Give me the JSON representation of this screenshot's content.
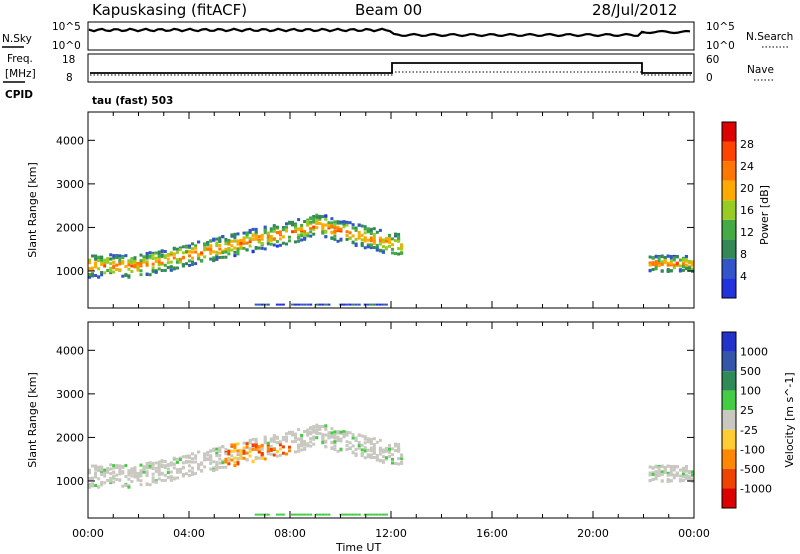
{
  "header": {
    "station": "Kapuskasing (fitACF)",
    "beam": "Beam 00",
    "date": "28/Jul/2012"
  },
  "noise_panel": {
    "left_label": "N.Sky",
    "left_top": "10^5",
    "left_bottom": "10^0",
    "right_label": "N.Search",
    "right_top": "10^5",
    "right_bottom": "10^0"
  },
  "freq_panel": {
    "left_label_1": "Freq.",
    "left_label_2": "[MHz]",
    "left_top": "18",
    "left_bottom": "8",
    "right_label": "Nave",
    "right_top": "60",
    "right_bottom": "0",
    "cpid_label": "CPID",
    "cpid_value": "tau (fast) 503"
  },
  "colors": {
    "power": [
      "#2233dd",
      "#3355cc",
      "#338855",
      "#44aa44",
      "#99cc22",
      "#ffaa00",
      "#ff7700",
      "#ff4400",
      "#dd0000"
    ],
    "velocity": [
      "#2233cc",
      "#3355aa",
      "#2e8b57",
      "#44cc44",
      "#c8c8c0",
      "#ffcc33",
      "#ff8800",
      "#ee4400",
      "#dd0000"
    ],
    "ground_scatter": "#c8c8c0"
  },
  "chart_data": [
    {
      "type": "heatmap",
      "name": "power-panel",
      "ylabel": "Slant Range [km]",
      "y_ticks": [
        "1000",
        "2000",
        "3000",
        "4000"
      ],
      "ylim": [
        150,
        4650
      ],
      "xlim_hours": [
        0,
        24
      ],
      "colorbar_label": "Power [dB]",
      "colorbar_ticks": [
        "4",
        "8",
        "12",
        "16",
        "20",
        "24",
        "28"
      ],
      "colorbar_range": [
        0,
        32
      ]
    },
    {
      "type": "heatmap",
      "name": "velocity-panel",
      "ylabel": "Slant Range [km]",
      "y_ticks": [
        "1000",
        "2000",
        "3000",
        "4000"
      ],
      "ylim": [
        150,
        4650
      ],
      "xlim_hours": [
        0,
        24
      ],
      "xlabel": "Time UT",
      "x_ticks": [
        "00:00",
        "04:00",
        "08:00",
        "12:00",
        "16:00",
        "20:00",
        "00:00"
      ],
      "colorbar_label": "Velocity [m s^-1]",
      "colorbar_ticks": [
        "1000",
        "500",
        "100",
        "25",
        "-25",
        "-100",
        "-500",
        "-1000"
      ]
    }
  ]
}
